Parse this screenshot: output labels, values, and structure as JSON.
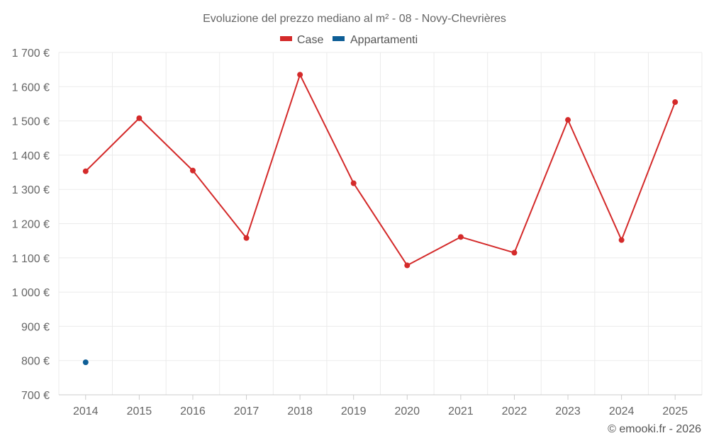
{
  "chart_data": {
    "type": "line",
    "title": "Evoluzione del prezzo mediano al m² - 08 - Novy-Chevrières",
    "categories": [
      "2014",
      "2015",
      "2016",
      "2017",
      "2018",
      "2019",
      "2020",
      "2021",
      "2022",
      "2023",
      "2024",
      "2025"
    ],
    "series": [
      {
        "name": "Case",
        "color": "#d42a2a",
        "values": [
          1353,
          1508,
          1355,
          1158,
          1635,
          1318,
          1078,
          1161,
          1115,
          1503,
          1152,
          1555
        ]
      },
      {
        "name": "Appartamenti",
        "color": "#0e5e96",
        "values": [
          795,
          null,
          null,
          null,
          null,
          null,
          null,
          null,
          null,
          null,
          null,
          null
        ]
      }
    ],
    "ylim": [
      700,
      1700
    ],
    "yticks": [
      700,
      800,
      900,
      1000,
      1100,
      1200,
      1300,
      1400,
      1500,
      1600,
      1700
    ],
    "ytick_labels": [
      "700 €",
      "800 €",
      "900 €",
      "1 000 €",
      "1 100 €",
      "1 200 €",
      "1 300 €",
      "1 400 €",
      "1 500 €",
      "1 600 €",
      "1 700 €"
    ],
    "xlabel": "",
    "ylabel": "",
    "grid": true,
    "legend_position": "top-center"
  },
  "credit": "© emooki.fr - 2026"
}
